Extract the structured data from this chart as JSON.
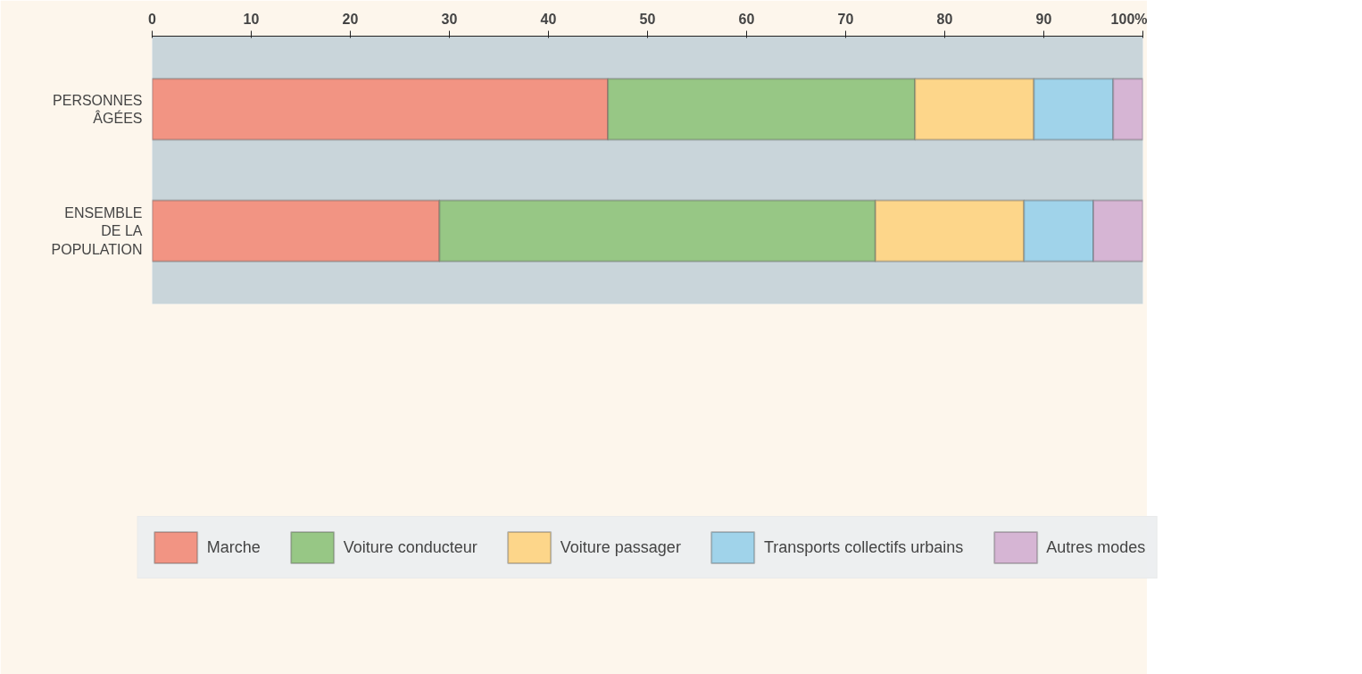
{
  "chart_data": {
    "type": "bar",
    "orientation": "horizontal",
    "stacked": true,
    "categories": [
      "PERSONNES ÂGÉES",
      "ENSEMBLE DE LA POPULATION"
    ],
    "series": [
      {
        "name": "Marche",
        "color": "#f29483",
        "values": [
          46,
          29
        ]
      },
      {
        "name": "Voiture conducteur",
        "color": "#97c785",
        "values": [
          31,
          44
        ]
      },
      {
        "name": "Voiture passager",
        "color": "#fdd68a",
        "values": [
          12,
          15
        ]
      },
      {
        "name": "Transports collectifs urbains",
        "color": "#a0d3ea",
        "values": [
          8,
          7
        ]
      },
      {
        "name": "Autres modes",
        "color": "#d6b5d4",
        "values": [
          3,
          5
        ]
      }
    ],
    "xlim": [
      0,
      100
    ],
    "xticks": [
      0,
      10,
      20,
      30,
      40,
      50,
      60,
      70,
      80,
      90,
      {
        "value": 100,
        "label": "100%"
      }
    ],
    "grid": false,
    "legend": "bottom"
  }
}
